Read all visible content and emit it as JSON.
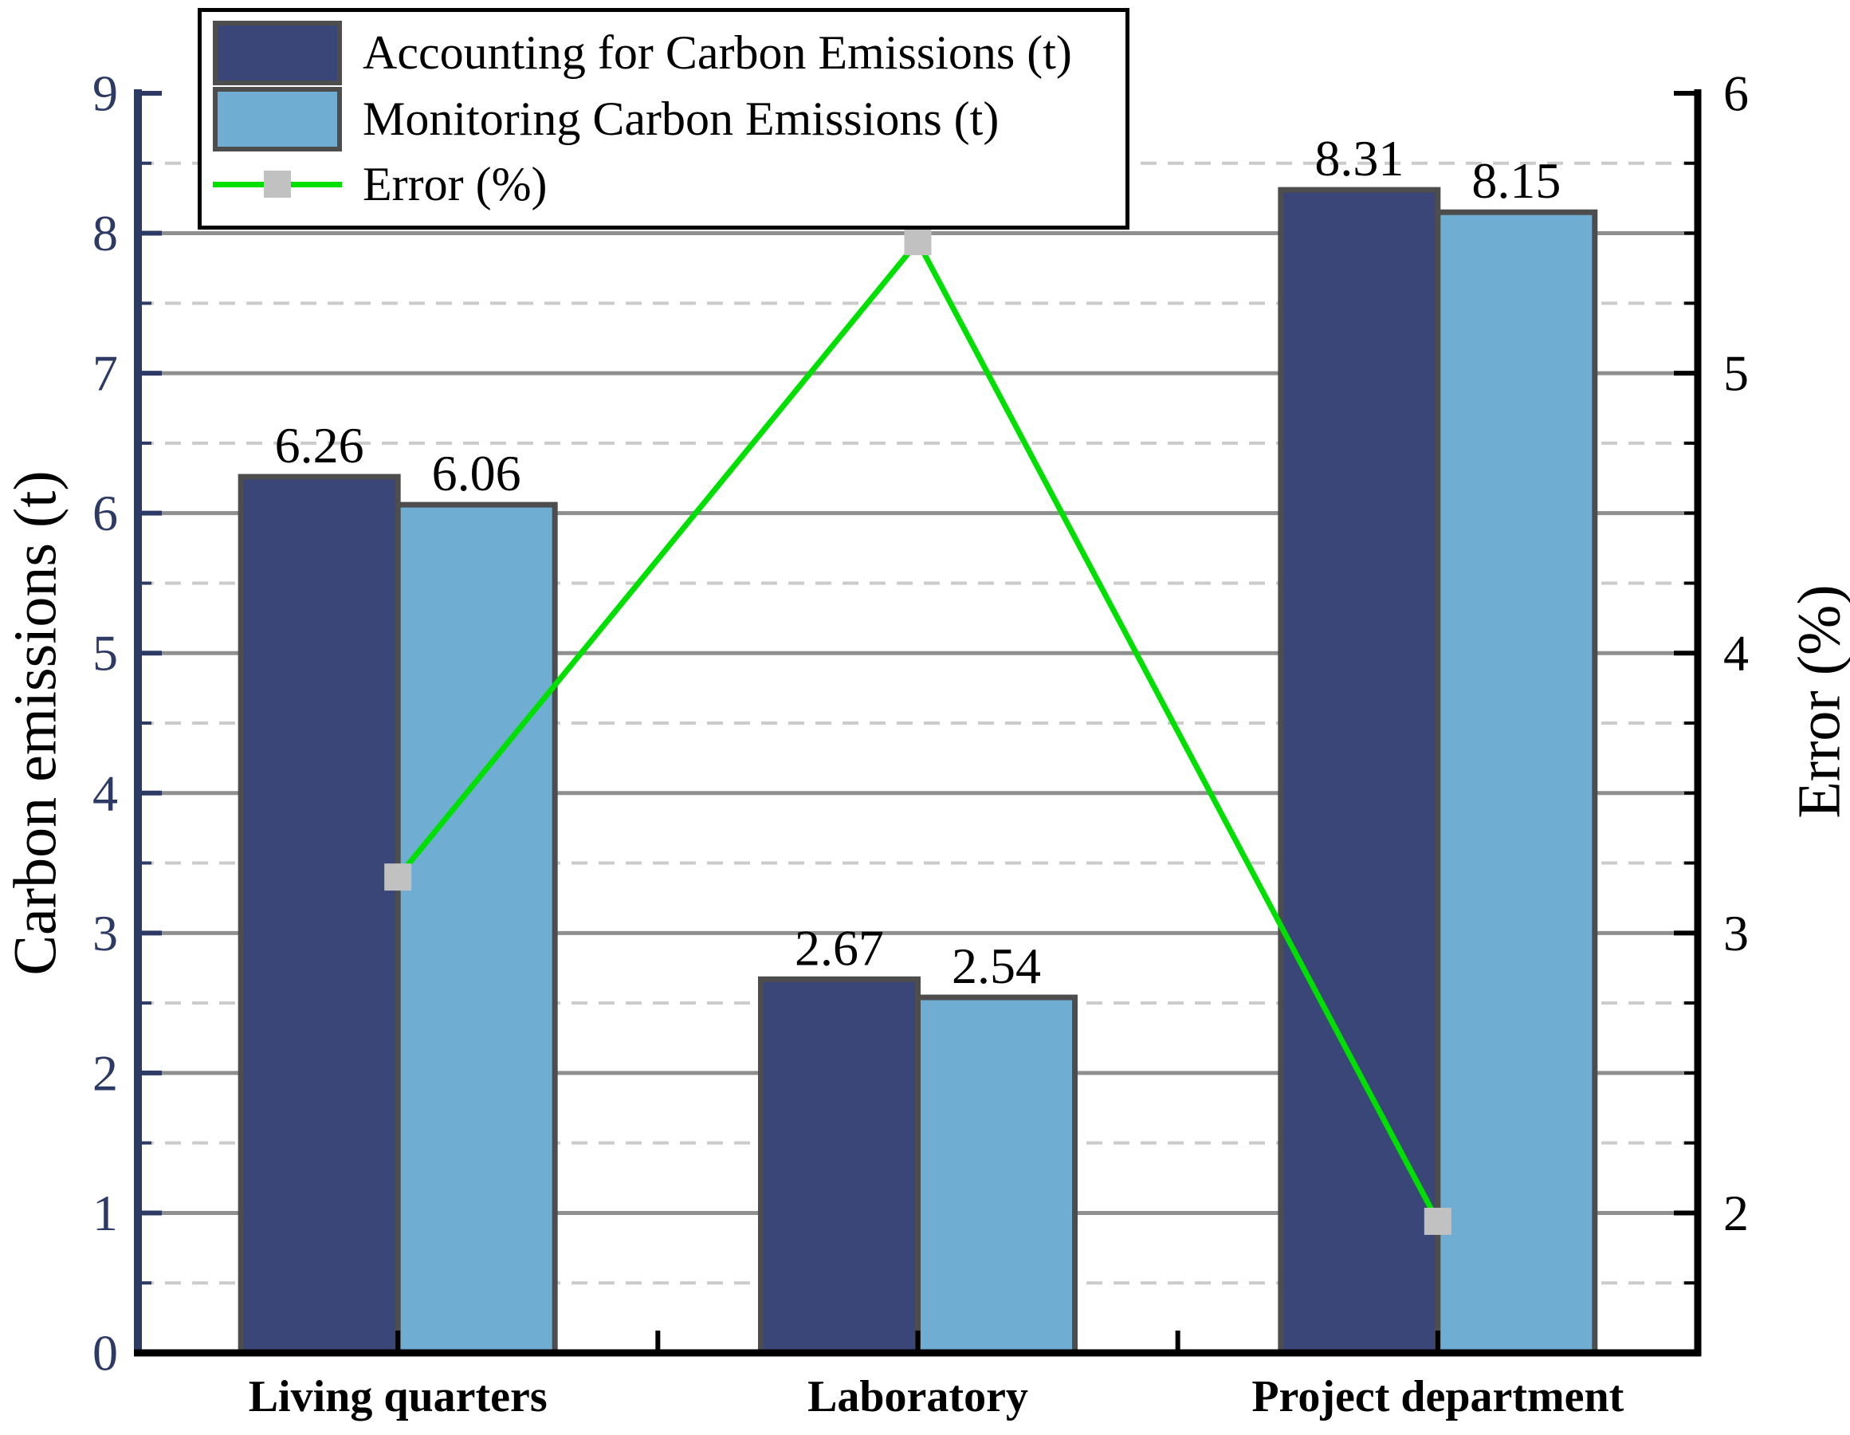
{
  "chart_data": {
    "type": "bar",
    "subtype": "grouped-bar-with-line-overlay",
    "categories": [
      "Living quarters",
      "Laboratory",
      "Project department"
    ],
    "series": [
      {
        "name": "Accounting for Carbon Emissions (t)",
        "type": "bar",
        "axis": "left",
        "color": "#3B4678",
        "border_color": "#4D4D4D",
        "values": [
          6.26,
          2.67,
          8.31
        ],
        "labels": [
          "6.26",
          "2.67",
          "8.31"
        ]
      },
      {
        "name": "Monitoring Carbon Emissions (t)",
        "type": "bar",
        "axis": "left",
        "color": "#6FADD3",
        "border_color": "#4D4D4D",
        "values": [
          6.06,
          2.54,
          8.15
        ],
        "labels": [
          "6.06",
          "2.54",
          "8.15"
        ]
      },
      {
        "name": "Error (%)",
        "type": "line",
        "axis": "right",
        "color": "#00E000",
        "marker": "square",
        "marker_color": "#C1C1C1",
        "values": [
          3.2,
          5.47,
          1.97
        ]
      }
    ],
    "left_axis": {
      "title": "Carbon emissions (t)",
      "min": 0,
      "max": 9,
      "major_ticks": [
        0,
        1,
        2,
        3,
        4,
        5,
        6,
        7,
        8,
        9
      ],
      "minor_step": 0.5,
      "color": "#2D3A64"
    },
    "right_axis": {
      "title": "Error (%)",
      "min": 1.5,
      "max": 6,
      "major_ticks": [
        2,
        3,
        4,
        5,
        6
      ],
      "minor_step": 0.25,
      "color": "#000000"
    },
    "x_axis": {
      "color": "#000000",
      "label_style": "bold"
    },
    "grid": {
      "solid_color": "#8F8F8F",
      "dashed_color": "#CBCBCB",
      "solid_at": "integers",
      "dashed_at": "half-integers"
    },
    "legend": {
      "position": "top-left",
      "background": "#FFFFFF",
      "border_color": "#000000"
    }
  }
}
